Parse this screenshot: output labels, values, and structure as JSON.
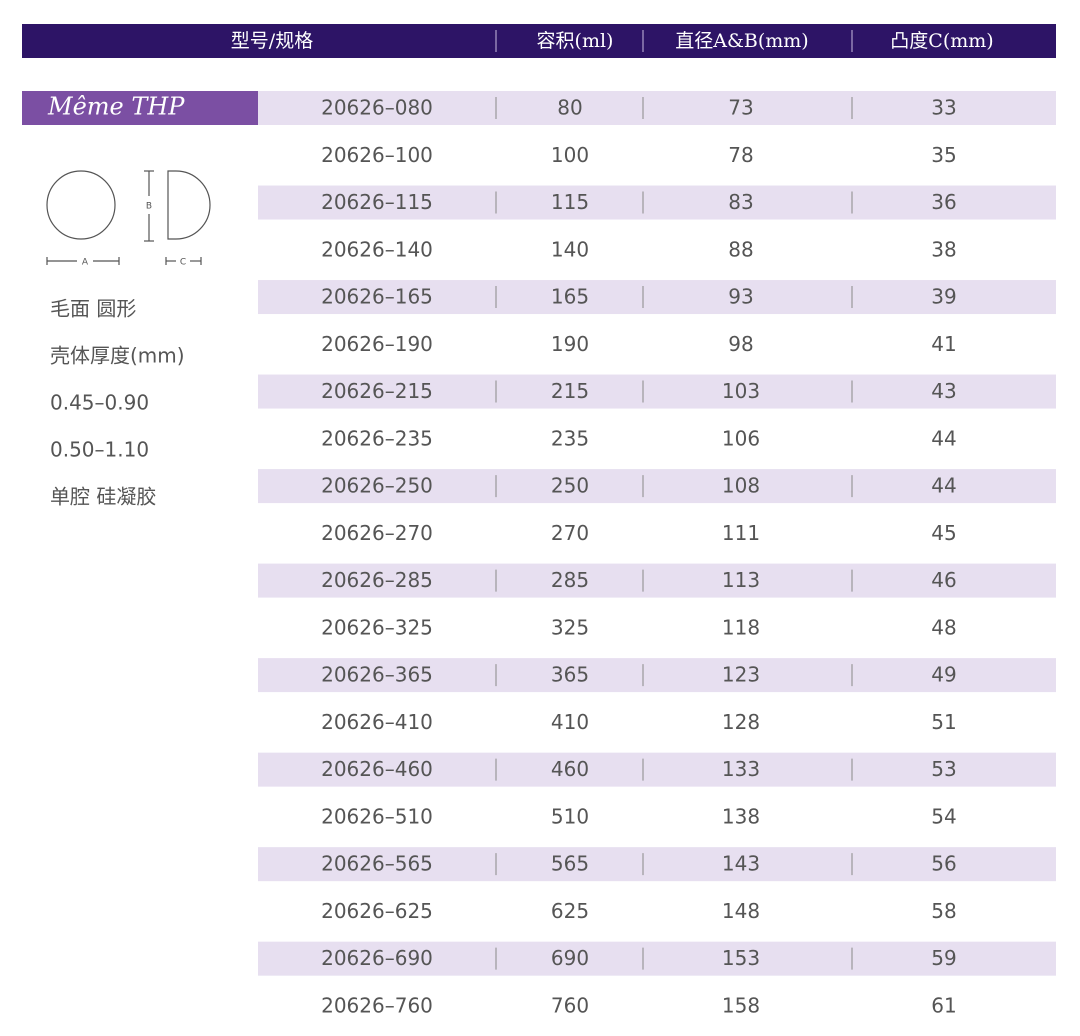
{
  "table": {
    "header": [
      "型号/规格",
      "容积(ml)",
      "直径A&B(mm)",
      "凸度C(mm)"
    ],
    "product": "Même THP",
    "diagram": {
      "a": "A",
      "b": "B",
      "c": "C"
    },
    "specs": [
      "毛面 圆形",
      "壳体厚度(mm)",
      "0.45–0.90",
      "0.50–1.10",
      "单腔 硅凝胶"
    ],
    "rows": [
      [
        "20626–080",
        80,
        73,
        33
      ],
      [
        "20626–100",
        100,
        78,
        35
      ],
      [
        "20626–115",
        115,
        83,
        36
      ],
      [
        "20626–140",
        140,
        88,
        38
      ],
      [
        "20626–165",
        165,
        93,
        39
      ],
      [
        "20626–190",
        190,
        98,
        41
      ],
      [
        "20626–215",
        215,
        103,
        43
      ],
      [
        "20626–235",
        235,
        106,
        44
      ],
      [
        "20626–250",
        250,
        108,
        44
      ],
      [
        "20626–270",
        270,
        111,
        45
      ],
      [
        "20626–285",
        285,
        113,
        46
      ],
      [
        "20626–325",
        325,
        118,
        48
      ],
      [
        "20626–365",
        365,
        123,
        49
      ],
      [
        "20626–410",
        410,
        128,
        51
      ],
      [
        "20626–460",
        460,
        133,
        53
      ],
      [
        "20626–510",
        510,
        138,
        54
      ],
      [
        "20626–565",
        565,
        143,
        56
      ],
      [
        "20626–625",
        625,
        148,
        58
      ],
      [
        "20626–690",
        690,
        153,
        59
      ],
      [
        "20626–760",
        760,
        158,
        61
      ]
    ]
  }
}
